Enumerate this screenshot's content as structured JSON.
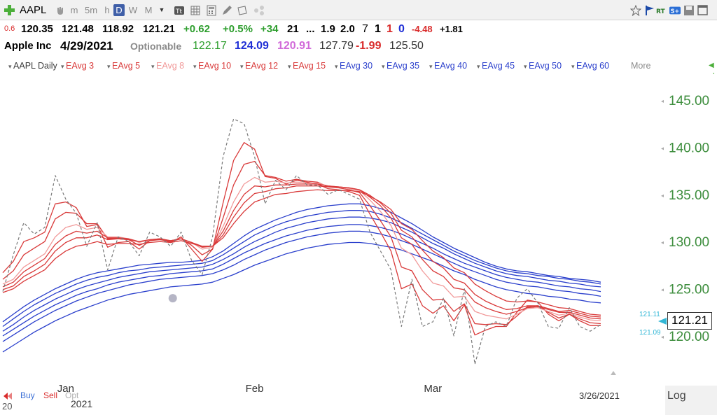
{
  "toolbar": {
    "symbol": "AAPL",
    "periods": [
      "m",
      "5m",
      "h",
      "D",
      "W",
      "M"
    ],
    "active_period": "D"
  },
  "quote_line1": {
    "pct_prefix": "0.6",
    "open": "120.35",
    "high": "121.48",
    "low": "118.92",
    "close": "121.21",
    "change": "+0.62",
    "change_pct": "+0.5%",
    "rank": "+34",
    "v1": "21",
    "ellipsis": "...",
    "v2": "1.9",
    "v3": "2.0",
    "c1": "7",
    "c2": "1",
    "c3": "1",
    "c4": "0",
    "neg": "-4.48",
    "pos": "+1.81"
  },
  "quote_line2": {
    "company": "Apple Inc",
    "date": "4/29/2021",
    "optionable": "Optionable",
    "v1": "122.17",
    "v2": "124.09",
    "v3": "120.91",
    "v4": "127.79",
    "v5": "-1.99",
    "v6": "125.50"
  },
  "legend": {
    "items": [
      {
        "label": "AAPL Daily",
        "color": "#3b3b3b"
      },
      {
        "label": "EAvg 3",
        "color": "#d93a3a"
      },
      {
        "label": "EAvg 5",
        "color": "#d93a3a"
      },
      {
        "label": "EAvg 8",
        "color": "#f19a9a"
      },
      {
        "label": "EAvg 10",
        "color": "#d93a3a"
      },
      {
        "label": "EAvg 12",
        "color": "#d93a3a"
      },
      {
        "label": "EAvg 15",
        "color": "#d93a3a"
      },
      {
        "label": "EAvg 30",
        "color": "#2a3fcc"
      },
      {
        "label": "EAvg 35",
        "color": "#2a3fcc"
      },
      {
        "label": "EAvg 40",
        "color": "#2a3fcc"
      },
      {
        "label": "EAvg 45",
        "color": "#2a3fcc"
      },
      {
        "label": "EAvg 50",
        "color": "#2a3fcc"
      },
      {
        "label": "EAvg 60",
        "color": "#2a3fcc"
      }
    ],
    "more": "More"
  },
  "chart_data": {
    "type": "line",
    "y_ticks": [
      "145.00",
      "140.00",
      "135.00",
      "130.00",
      "125.00",
      "120.00"
    ],
    "ylim": [
      115,
      148
    ],
    "x_labels": [
      "Jan",
      "Feb",
      "Mar"
    ],
    "year": "2021",
    "end_date": "3/26/2021",
    "last_price": "121.21",
    "tag_high": "121.11",
    "tag_low": "121.09",
    "grid": false,
    "series": [
      {
        "name": "AAPL Daily",
        "color": "#7a7a7a",
        "dashed": true,
        "values": [
          124.7,
          128.6,
          132.0,
          130.8,
          131.5,
          137.0,
          134.5,
          133.0,
          129.5,
          132.0,
          127.0,
          130.5,
          130.0,
          128.5,
          131.0,
          130.5,
          129.5,
          131.0,
          128.0,
          126.5,
          130.5,
          139.0,
          143.0,
          142.5,
          139.0,
          134.0,
          136.5,
          135.5,
          137.0,
          136.0,
          136.0,
          135.0,
          135.5,
          135.0,
          134.5,
          131.0,
          129.0,
          127.0,
          121.0,
          126.0,
          121.0,
          121.5,
          124.0,
          120.0,
          125.0,
          117.0,
          121.0,
          121.5,
          121.0,
          124.0,
          125.0,
          123.5,
          121.0,
          120.8,
          123.0,
          121.0,
          120.5,
          121.2
        ]
      },
      {
        "name": "EAvg 3",
        "color": "#d93a3a",
        "values": [
          126.7,
          127.9,
          130.0,
          130.4,
          131.0,
          134.0,
          134.2,
          133.6,
          131.6,
          131.8,
          129.4,
          129.9,
          130.0,
          129.2,
          130.1,
          130.3,
          129.9,
          130.5,
          129.2,
          127.9,
          129.2,
          134.1,
          138.6,
          140.5,
          139.8,
          136.9,
          136.7,
          136.1,
          136.5,
          136.3,
          136.1,
          135.6,
          135.5,
          135.3,
          134.9,
          132.9,
          131.0,
          129.0,
          125.0,
          125.5,
          123.2,
          122.4,
          123.2,
          121.6,
          123.3,
          120.1,
          120.6,
          121.0,
          121.0,
          122.5,
          123.8,
          123.6,
          122.3,
          121.6,
          122.3,
          121.6,
          121.1,
          121.1
        ]
      },
      {
        "name": "EAvg 5",
        "color": "#d93a3a",
        "values": [
          126.0,
          126.9,
          128.6,
          129.3,
          130.0,
          132.4,
          133.1,
          133.0,
          131.9,
          131.9,
          130.3,
          130.3,
          130.2,
          129.6,
          130.1,
          130.2,
          130.0,
          130.3,
          129.6,
          128.6,
          129.2,
          132.5,
          136.0,
          138.2,
          138.5,
          137.0,
          136.8,
          136.4,
          136.6,
          136.4,
          136.3,
          135.8,
          135.7,
          135.5,
          135.2,
          133.8,
          132.2,
          130.5,
          127.3,
          126.9,
          124.9,
          123.8,
          123.9,
          122.6,
          123.4,
          121.3,
          121.2,
          121.3,
          121.2,
          122.1,
          123.1,
          123.2,
          122.5,
          121.9,
          122.3,
          121.8,
          121.4,
          121.3
        ]
      },
      {
        "name": "EAvg 8",
        "color": "#f19a9a",
        "values": [
          125.5,
          126.0,
          127.3,
          128.0,
          128.7,
          130.5,
          131.5,
          131.8,
          131.3,
          131.5,
          130.5,
          130.5,
          130.3,
          129.9,
          130.2,
          130.3,
          130.1,
          130.3,
          129.9,
          129.2,
          129.4,
          131.6,
          134.2,
          136.1,
          136.8,
          136.3,
          136.4,
          136.2,
          136.3,
          136.2,
          136.2,
          135.9,
          135.8,
          135.6,
          135.4,
          134.4,
          133.2,
          131.7,
          129.3,
          128.6,
          126.9,
          125.6,
          125.3,
          124.1,
          124.2,
          122.6,
          122.2,
          122.0,
          121.8,
          122.3,
          122.9,
          123.0,
          122.6,
          122.2,
          122.4,
          122.0,
          121.7,
          121.6
        ]
      },
      {
        "name": "EAvg 10",
        "color": "#d93a3a",
        "values": [
          125.2,
          125.7,
          126.8,
          127.5,
          128.2,
          129.7,
          130.6,
          131.1,
          130.9,
          131.1,
          130.4,
          130.4,
          130.3,
          130.0,
          130.2,
          130.3,
          130.1,
          130.3,
          129.9,
          129.4,
          129.5,
          131.1,
          133.3,
          135.0,
          135.9,
          135.8,
          136.0,
          136.0,
          136.1,
          136.1,
          136.1,
          135.9,
          135.8,
          135.7,
          135.5,
          134.7,
          133.8,
          132.5,
          130.4,
          129.7,
          128.1,
          126.9,
          126.3,
          125.1,
          124.9,
          123.6,
          123.0,
          122.6,
          122.3,
          122.6,
          123.0,
          123.1,
          122.8,
          122.5,
          122.5,
          122.2,
          121.9,
          121.8
        ]
      },
      {
        "name": "EAvg 12",
        "color": "#d93a3a",
        "values": [
          124.9,
          125.3,
          126.3,
          126.9,
          127.6,
          129.0,
          129.9,
          130.4,
          130.4,
          130.7,
          130.2,
          130.3,
          130.2,
          130.0,
          130.2,
          130.2,
          130.1,
          130.3,
          129.9,
          129.5,
          129.5,
          130.7,
          132.6,
          134.1,
          135.1,
          135.3,
          135.6,
          135.7,
          135.9,
          135.9,
          135.9,
          135.8,
          135.8,
          135.7,
          135.5,
          134.9,
          134.1,
          133.0,
          131.2,
          130.5,
          129.1,
          127.9,
          127.2,
          126.0,
          125.6,
          124.4,
          123.7,
          123.2,
          122.8,
          122.9,
          123.2,
          123.2,
          122.9,
          122.6,
          122.7,
          122.4,
          122.1,
          122.0
        ]
      },
      {
        "name": "EAvg 15",
        "color": "#d93a3a",
        "values": [
          124.6,
          125.0,
          125.8,
          126.4,
          127.0,
          128.2,
          129.0,
          129.5,
          129.7,
          130.0,
          129.7,
          129.8,
          129.8,
          129.7,
          129.9,
          130.0,
          129.9,
          130.1,
          129.8,
          129.5,
          129.5,
          130.4,
          131.9,
          133.2,
          134.2,
          134.6,
          135.0,
          135.1,
          135.3,
          135.4,
          135.5,
          135.4,
          135.4,
          135.4,
          135.3,
          134.8,
          134.2,
          133.4,
          131.9,
          131.3,
          130.1,
          129.0,
          128.3,
          127.2,
          126.7,
          125.5,
          124.8,
          124.2,
          123.7,
          123.6,
          123.7,
          123.6,
          123.3,
          123.0,
          122.9,
          122.6,
          122.3,
          122.2
        ]
      },
      {
        "name": "EAvg 30",
        "color": "#2a3fcc",
        "values": [
          121.5,
          122.3,
          123.1,
          123.8,
          124.4,
          125.0,
          125.5,
          126.0,
          126.4,
          126.7,
          126.9,
          127.1,
          127.3,
          127.5,
          127.6,
          127.7,
          127.8,
          127.8,
          127.9,
          128.0,
          128.4,
          129.0,
          129.8,
          130.6,
          131.3,
          131.8,
          132.3,
          132.7,
          133.1,
          133.4,
          133.6,
          133.8,
          133.9,
          134.0,
          134.0,
          133.8,
          133.5,
          133.1,
          132.5,
          131.9,
          131.2,
          130.5,
          129.9,
          129.3,
          128.8,
          128.3,
          127.8,
          127.4,
          127.1,
          126.9,
          126.8,
          126.6,
          126.4,
          126.3,
          126.1,
          126.0,
          125.9,
          125.7
        ]
      },
      {
        "name": "EAvg 35",
        "color": "#2a3fcc",
        "values": [
          121.0,
          121.8,
          122.6,
          123.3,
          123.9,
          124.5,
          125.0,
          125.5,
          125.9,
          126.2,
          126.4,
          126.7,
          126.9,
          127.0,
          127.2,
          127.3,
          127.4,
          127.5,
          127.6,
          127.7,
          128.0,
          128.6,
          129.3,
          130.0,
          130.7,
          131.2,
          131.7,
          132.1,
          132.4,
          132.7,
          132.9,
          133.1,
          133.2,
          133.3,
          133.3,
          133.2,
          132.9,
          132.5,
          132.0,
          131.4,
          130.8,
          130.2,
          129.6,
          129.0,
          128.5,
          128.0,
          127.6,
          127.2,
          126.9,
          126.7,
          126.6,
          126.4,
          126.3,
          126.1,
          126.0,
          125.8,
          125.7,
          125.5
        ]
      },
      {
        "name": "EAvg 40",
        "color": "#2a3fcc",
        "values": [
          120.5,
          121.2,
          122.0,
          122.7,
          123.3,
          123.9,
          124.4,
          124.9,
          125.3,
          125.6,
          125.9,
          126.2,
          126.4,
          126.6,
          126.8,
          126.9,
          127.0,
          127.1,
          127.2,
          127.3,
          127.6,
          128.1,
          128.7,
          129.4,
          130.0,
          130.5,
          131.0,
          131.4,
          131.7,
          132.0,
          132.2,
          132.4,
          132.5,
          132.6,
          132.6,
          132.5,
          132.3,
          132.0,
          131.5,
          131.0,
          130.4,
          129.8,
          129.3,
          128.7,
          128.2,
          127.7,
          127.3,
          126.9,
          126.6,
          126.4,
          126.3,
          126.1,
          125.9,
          125.8,
          125.6,
          125.5,
          125.3,
          125.2
        ]
      },
      {
        "name": "EAvg 45",
        "color": "#2a3fcc",
        "values": [
          120.0,
          120.7,
          121.4,
          122.1,
          122.7,
          123.3,
          123.8,
          124.3,
          124.7,
          125.0,
          125.4,
          125.7,
          125.9,
          126.1,
          126.3,
          126.4,
          126.6,
          126.7,
          126.8,
          126.9,
          127.1,
          127.6,
          128.2,
          128.8,
          129.3,
          129.8,
          130.2,
          130.6,
          130.9,
          131.2,
          131.4,
          131.6,
          131.7,
          131.8,
          131.8,
          131.7,
          131.5,
          131.2,
          130.8,
          130.3,
          129.8,
          129.3,
          128.7,
          128.2,
          127.7,
          127.3,
          126.9,
          126.5,
          126.2,
          126.0,
          125.8,
          125.7,
          125.5,
          125.3,
          125.2,
          125.0,
          124.9,
          124.7
        ]
      },
      {
        "name": "EAvg 50",
        "color": "#2a3fcc",
        "values": [
          119.4,
          120.1,
          120.8,
          121.5,
          122.1,
          122.7,
          123.2,
          123.7,
          124.1,
          124.5,
          124.8,
          125.1,
          125.4,
          125.6,
          125.8,
          126.0,
          126.1,
          126.2,
          126.3,
          126.4,
          126.6,
          127.0,
          127.5,
          128.1,
          128.6,
          129.1,
          129.5,
          129.9,
          130.2,
          130.5,
          130.7,
          130.9,
          131.0,
          131.1,
          131.1,
          131.0,
          130.8,
          130.5,
          130.1,
          129.7,
          129.2,
          128.7,
          128.2,
          127.7,
          127.2,
          126.8,
          126.4,
          126.0,
          125.7,
          125.5,
          125.3,
          125.2,
          125.0,
          124.8,
          124.7,
          124.5,
          124.4,
          124.2
        ]
      },
      {
        "name": "EAvg 60",
        "color": "#2a3fcc",
        "values": [
          118.3,
          119.0,
          119.7,
          120.4,
          121.0,
          121.6,
          122.1,
          122.6,
          123.0,
          123.4,
          123.8,
          124.1,
          124.4,
          124.6,
          124.8,
          125.0,
          125.2,
          125.3,
          125.4,
          125.5,
          125.7,
          126.1,
          126.5,
          127.0,
          127.5,
          127.9,
          128.3,
          128.7,
          129.0,
          129.3,
          129.5,
          129.7,
          129.8,
          129.9,
          129.9,
          129.8,
          129.6,
          129.4,
          129.1,
          128.7,
          128.3,
          127.9,
          127.4,
          126.9,
          126.5,
          126.0,
          125.6,
          125.2,
          124.9,
          124.7,
          124.5,
          124.4,
          124.2,
          124.1,
          123.9,
          123.8,
          123.6,
          123.5
        ]
      }
    ]
  },
  "bottom": {
    "flag_label": "20",
    "buy": "Buy",
    "sell": "Sell",
    "opt": "Opt",
    "log": "Log"
  },
  "colors": {
    "axis_text": "#3e8e3e",
    "up": "#2e9e2e",
    "down": "#d92b2b",
    "blue": "#1f2fd6",
    "magenta": "#d16ad9"
  }
}
